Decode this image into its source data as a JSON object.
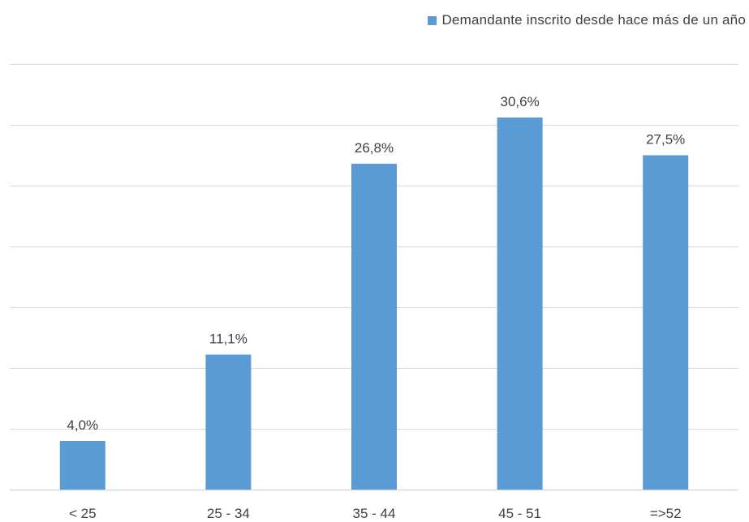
{
  "chart_data": {
    "type": "bar",
    "categories": [
      "< 25",
      "25 - 34",
      "35 - 44",
      "45 - 51",
      "=>52"
    ],
    "series": [
      {
        "name": "Demandante inscrito desde hace más de un año",
        "values": [
          4.0,
          11.1,
          26.8,
          30.6,
          27.5
        ],
        "data_labels": [
          "4,0%",
          "11,1%",
          "26,8%",
          "30,6%",
          "27,5%"
        ],
        "color": "#5B9BD5"
      }
    ],
    "ylim": [
      0,
      35
    ],
    "y_unit": "%",
    "grid": true,
    "gridline_color": "#D9D9D9",
    "legend_position": "top-right",
    "y_axis_labels_visible": false
  }
}
